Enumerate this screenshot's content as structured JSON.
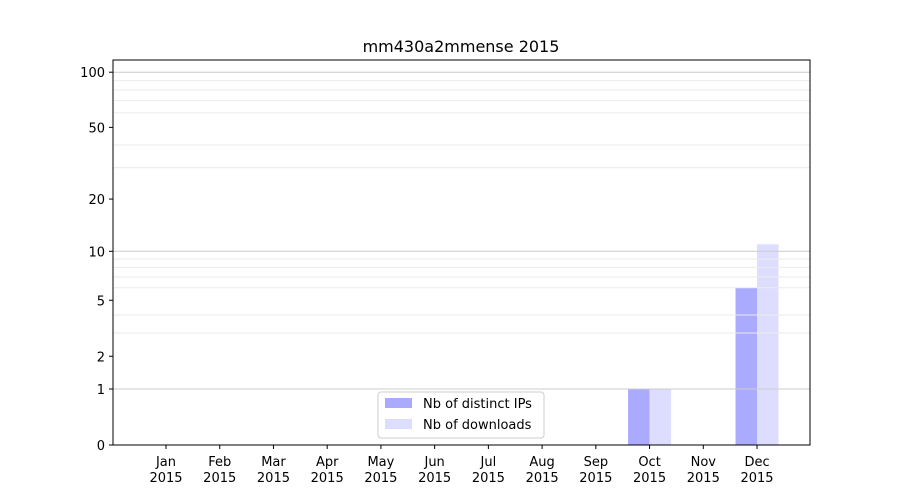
{
  "chart_data": {
    "type": "bar",
    "title": "mm430a2mmense 2015",
    "xlabel": "",
    "ylabel": "",
    "yscale": "symlog",
    "ylim": [
      0,
      116
    ],
    "yticks": [
      0,
      1,
      2,
      5,
      10,
      20,
      50,
      100
    ],
    "ytick_labels": [
      "0",
      "1",
      "2",
      "5",
      "10",
      "20",
      "50",
      "100"
    ],
    "grid": true,
    "legend_position": "bottom-center",
    "categories": [
      "Jan\n2015",
      "Feb\n2015",
      "Mar\n2015",
      "Apr\n2015",
      "May\n2015",
      "Jun\n2015",
      "Jul\n2015",
      "Aug\n2015",
      "Sep\n2015",
      "Oct\n2015",
      "Nov\n2015",
      "Dec\n2015"
    ],
    "series": [
      {
        "name": "Nb of distinct IPs",
        "color": "#aaaaff",
        "values": [
          0,
          0,
          0,
          0,
          0,
          0,
          0,
          0,
          0,
          1,
          0,
          6
        ]
      },
      {
        "name": "Nb of downloads",
        "color": "#ddddff",
        "values": [
          0,
          0,
          0,
          0,
          0,
          0,
          0,
          0,
          0,
          1,
          0,
          11
        ]
      }
    ]
  }
}
